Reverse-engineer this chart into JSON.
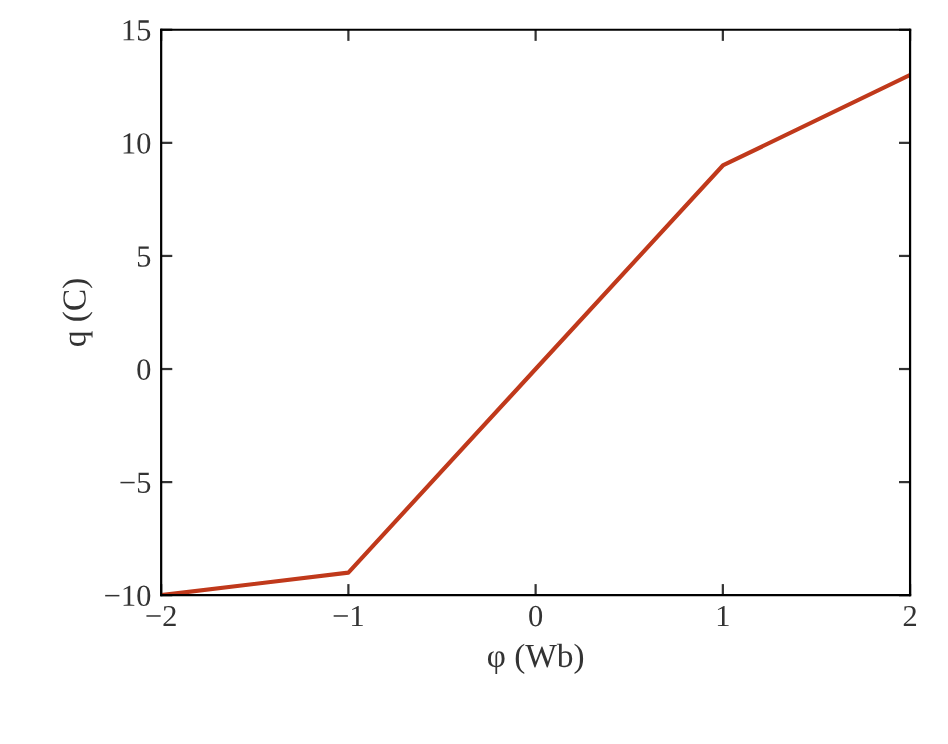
{
  "chart_data": {
    "type": "line",
    "xlabel": "φ (Wb)",
    "ylabel": "q (C)",
    "x": [
      -2,
      -1,
      0,
      1,
      2
    ],
    "series": [
      {
        "color": "#c0391b",
        "values": [
          -10,
          -9,
          0,
          9,
          13
        ]
      }
    ],
    "xlim": [
      -2,
      2
    ],
    "ylim": [
      -10,
      15
    ],
    "xticks": [
      {
        "value": -2,
        "label": "−2"
      },
      {
        "value": -1,
        "label": "−1"
      },
      0,
      1,
      2
    ],
    "yticks": [
      {
        "value": -10,
        "label": "−10"
      },
      {
        "value": -5,
        "label": "−5"
      },
      0,
      5,
      10,
      15
    ],
    "grid": false,
    "legend": false,
    "marker": "none",
    "line_style": "solid"
  }
}
